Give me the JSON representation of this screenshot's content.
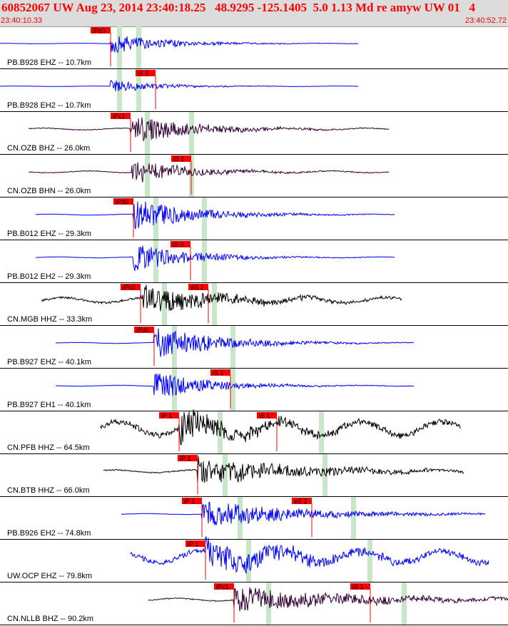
{
  "header": {
    "title": "60852067 UW Aug 23, 2014 23:40:18.25   48.9295 -125.1405  5.0 1.13 Md re amyw UW 01   4",
    "time_start": "23:40:10.33",
    "time_end": "23:40:52.72",
    "bg_color": "#dcdcdc",
    "text_color": "#ff0000"
  },
  "colors": {
    "blue": "#0000ff",
    "black": "#000000",
    "purple": "#330033",
    "pick": "#ff0000",
    "green": "#c8e6c8"
  },
  "traces": [
    {
      "label": "PB.B928 EHZ -- 10.7km",
      "color": "blue",
      "x0": 0,
      "x1": 502,
      "onset": 155,
      "amp": 14,
      "noise": 0.5,
      "decay": 80,
      "green": [
        167,
        194
      ],
      "picks": [
        {
          "t": "iPc0",
          "x": 155
        }
      ]
    },
    {
      "label": "PB.B928 EH2 -- 10.7km",
      "color": "blue",
      "x0": 0,
      "x1": 502,
      "onset": 155,
      "amp": 9,
      "noise": 0.5,
      "decay": 70,
      "green": [
        167,
        194
      ],
      "picks": [
        {
          "t": "iS 0",
          "x": 218
        }
      ]
    },
    {
      "label": "CN.OZB BHZ -- 26.0km",
      "color": "purple",
      "x0": 40,
      "x1": 545,
      "onset": 183,
      "amp": 20,
      "noise": 2,
      "decay": 90,
      "green": [
        206,
        268
      ],
      "picks": [
        {
          "t": "iPc1",
          "x": 183
        }
      ]
    },
    {
      "label": "CN.OZB BHN -- 26.0km",
      "color": "purple",
      "x0": 40,
      "x1": 545,
      "onset": 185,
      "amp": 18,
      "noise": 2,
      "decay": 80,
      "green": [
        206,
        268
      ],
      "picks": [
        {
          "t": "iS 1",
          "x": 268
        }
      ]
    },
    {
      "label": "PB.B012 EHZ -- 29.3km",
      "color": "blue",
      "x0": 50,
      "x1": 553,
      "onset": 187,
      "amp": 22,
      "noise": 1,
      "decay": 90,
      "green": [
        218,
        286
      ],
      "picks": [
        {
          "t": "iPd0",
          "x": 187
        }
      ]
    },
    {
      "label": "PB.B012 EH2 -- 29.3km",
      "color": "blue",
      "x0": 50,
      "x1": 553,
      "onset": 187,
      "amp": 20,
      "noise": 1,
      "decay": 80,
      "green": [
        218,
        286
      ],
      "picks": [
        {
          "t": "iS 0",
          "x": 267
        }
      ]
    },
    {
      "label": "CN.MGB HHZ -- 33.3km",
      "color": "black",
      "x0": 58,
      "x1": 563,
      "onset": 197,
      "amp": 20,
      "noise": 6,
      "decay": 120,
      "green": [
        230,
        300
      ],
      "picks": [
        {
          "t": "iPc0",
          "x": 197
        },
        {
          "t": "eS 2",
          "x": 292
        }
      ]
    },
    {
      "label": "PB.B927 EHZ -- 40.1km",
      "color": "blue",
      "x0": 78,
      "x1": 580,
      "onset": 216,
      "amp": 24,
      "noise": 1,
      "decay": 90,
      "green": [
        244,
        326
      ],
      "picks": [
        {
          "t": "iPd0",
          "x": 216
        }
      ]
    },
    {
      "label": "PB.B927 EH1 -- 40.1km",
      "color": "blue",
      "x0": 78,
      "x1": 580,
      "onset": 216,
      "amp": 20,
      "noise": 1,
      "decay": 80,
      "green": [
        244,
        326
      ],
      "picks": [
        {
          "t": "iS 1",
          "x": 323
        }
      ]
    },
    {
      "label": "CN.PFB HHZ -- 64.5km",
      "color": "black",
      "x0": 140,
      "x1": 645,
      "onset": 251,
      "amp": 25,
      "noise": 16,
      "decay": 100,
      "green": [
        308,
        450
      ],
      "picks": [
        {
          "t": "iP 1",
          "x": 251
        },
        {
          "t": "iS 1",
          "x": 388
        }
      ]
    },
    {
      "label": "CN.BTB HHZ -- 66.0km",
      "color": "black",
      "x0": 145,
      "x1": 650,
      "onset": 277,
      "amp": 20,
      "noise": 3,
      "decay": 150,
      "green": [
        315,
        455
      ],
      "picks": [
        {
          "t": "iP 1",
          "x": 277
        }
      ]
    },
    {
      "label": "PB.B926 EH2 -- 74.8km",
      "color": "blue",
      "x0": 170,
      "x1": 680,
      "onset": 283,
      "amp": 20,
      "noise": 1,
      "decay": 140,
      "green": [
        336,
        495
      ],
      "picks": [
        {
          "t": "iP 1",
          "x": 283
        },
        {
          "t": "eS 2",
          "x": 437
        }
      ]
    },
    {
      "label": "UW.OCP EHZ -- 79.8km",
      "color": "blue",
      "x0": 183,
      "x1": 685,
      "onset": 288,
      "amp": 22,
      "noise": 14,
      "decay": 140,
      "green": [
        348,
        518
      ],
      "picks": [
        {
          "t": "iP 1",
          "x": 288
        }
      ]
    },
    {
      "label": "CN.NLLB BHZ -- 90.2km",
      "color": "purple",
      "x0": 208,
      "x1": 712,
      "onset": 328,
      "amp": 18,
      "noise": 3,
      "decay": 180,
      "green": [
        376,
        566
      ],
      "picks": [
        {
          "t": "iPc1",
          "x": 328
        },
        {
          "t": "iS 1",
          "x": 519
        }
      ]
    }
  ]
}
